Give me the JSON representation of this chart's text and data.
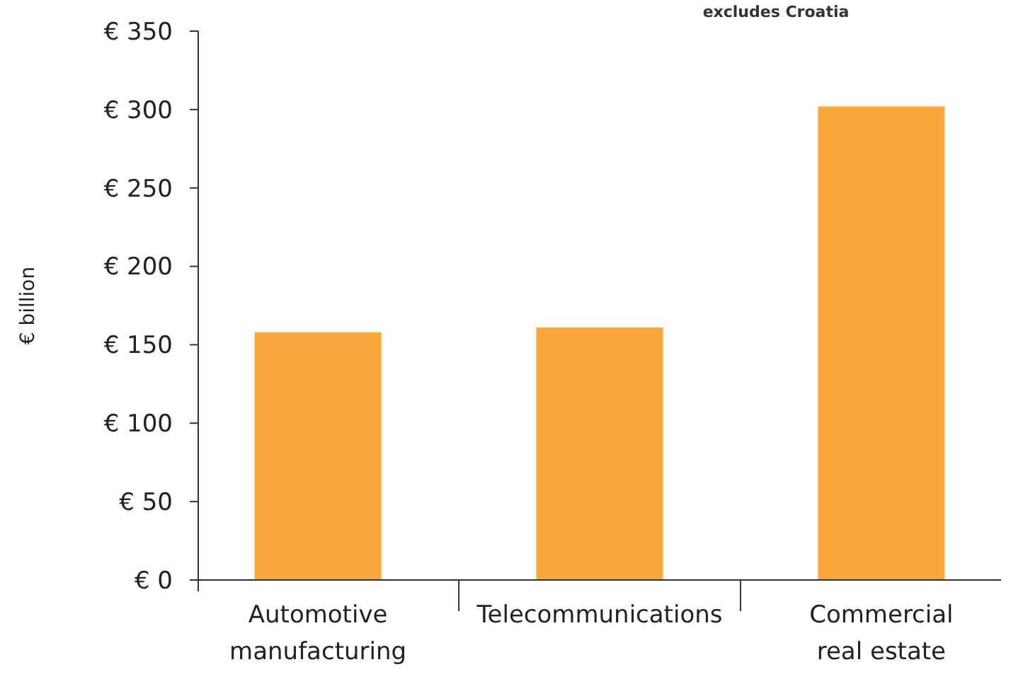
{
  "chart_data": {
    "type": "bar",
    "ylabel": "€ billion",
    "annotations": [
      "excludes Croatia"
    ],
    "categories": [
      "Automotive\nmanufacturing",
      "Telecommunications",
      "Commercial\nreal estate"
    ],
    "values": [
      158,
      161,
      302
    ],
    "color": "#f9a93b",
    "ylim": [
      0,
      350
    ],
    "yticks": [
      {
        "value": 0,
        "label": "€ 0"
      },
      {
        "value": 50,
        "label": "€ 50"
      },
      {
        "value": 100,
        "label": "€ 100"
      },
      {
        "value": 150,
        "label": "€ 150"
      },
      {
        "value": 200,
        "label": "€ 200"
      },
      {
        "value": 250,
        "label": "€ 250"
      },
      {
        "value": 300,
        "label": "€ 300"
      },
      {
        "value": 350,
        "label": "€ 350"
      }
    ],
    "grid": false
  }
}
